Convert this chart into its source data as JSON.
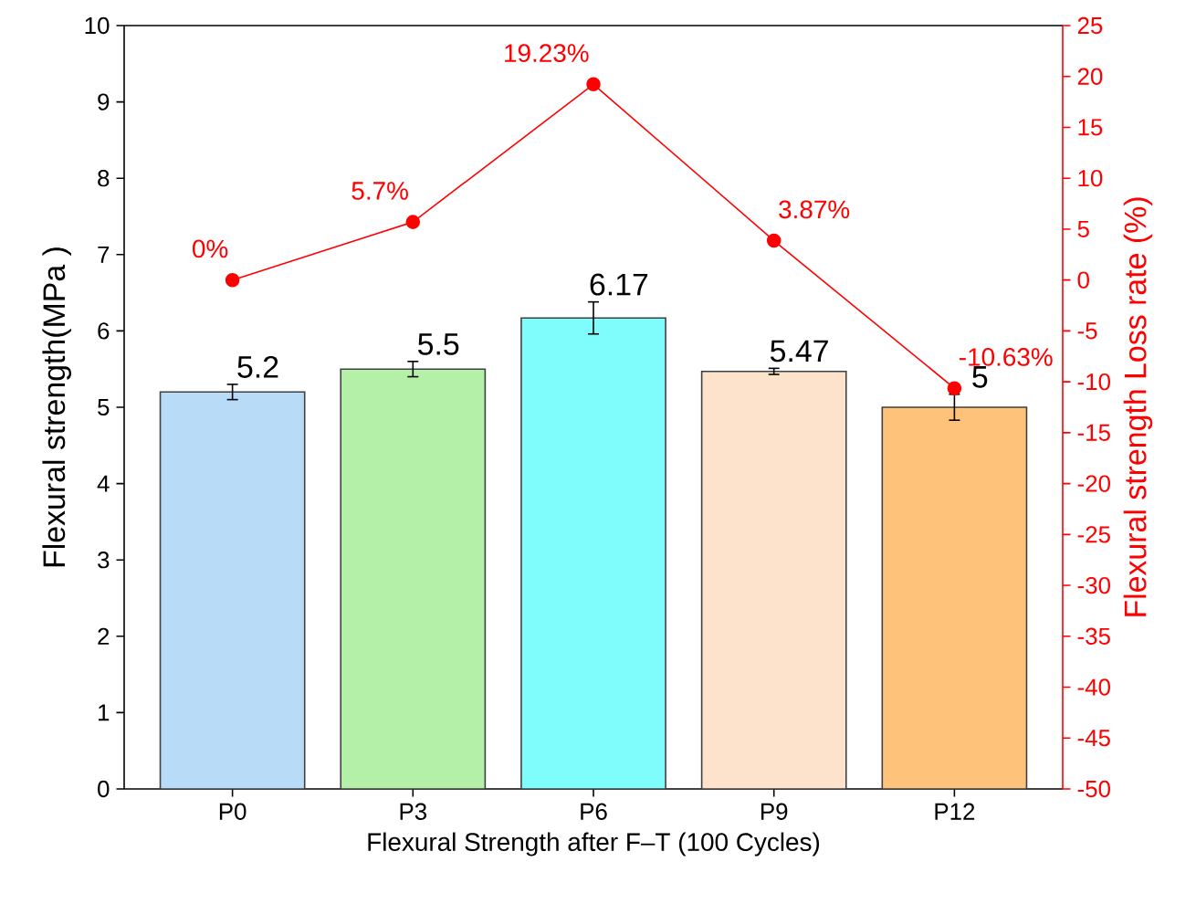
{
  "chart_data": {
    "type": "bar",
    "xlabel": "Flexural Strength after F–T (100 Cycles)",
    "ylabel": "Flexural strength(MPa )",
    "y2label": "Flexural strength Loss rate (%)",
    "categories": [
      "P0",
      "P3",
      "P6",
      "P9",
      "P12"
    ],
    "ylim": [
      0,
      10
    ],
    "yticks": [
      0,
      1,
      2,
      3,
      4,
      5,
      6,
      7,
      8,
      9,
      10
    ],
    "y2lim": [
      -50,
      25
    ],
    "y2ticks": [
      -50,
      -45,
      -40,
      -35,
      -30,
      -25,
      -20,
      -15,
      -10,
      -5,
      0,
      5,
      10,
      15,
      20,
      25
    ],
    "series": [
      {
        "type": "bar",
        "colors": [
          "#b8dcf8",
          "#b4f0a8",
          "#7ffcfc",
          "#fde3cc",
          "#ffc27a"
        ],
        "values": [
          5.2,
          5.5,
          6.17,
          5.47,
          5
        ],
        "errors": [
          0.1,
          0.1,
          0.21,
          0.04,
          0.17
        ],
        "value_labels": [
          "5.2",
          "5.5",
          "6.17",
          "5.47",
          "5"
        ]
      },
      {
        "type": "line",
        "axis": "y2",
        "color": "#ff0000",
        "marker": "circle",
        "values": [
          0,
          5.7,
          19.23,
          3.87,
          -10.63
        ],
        "value_labels": [
          "0%",
          "5.7%",
          "19.23%",
          "3.87%",
          "-10.63%"
        ]
      }
    ]
  }
}
